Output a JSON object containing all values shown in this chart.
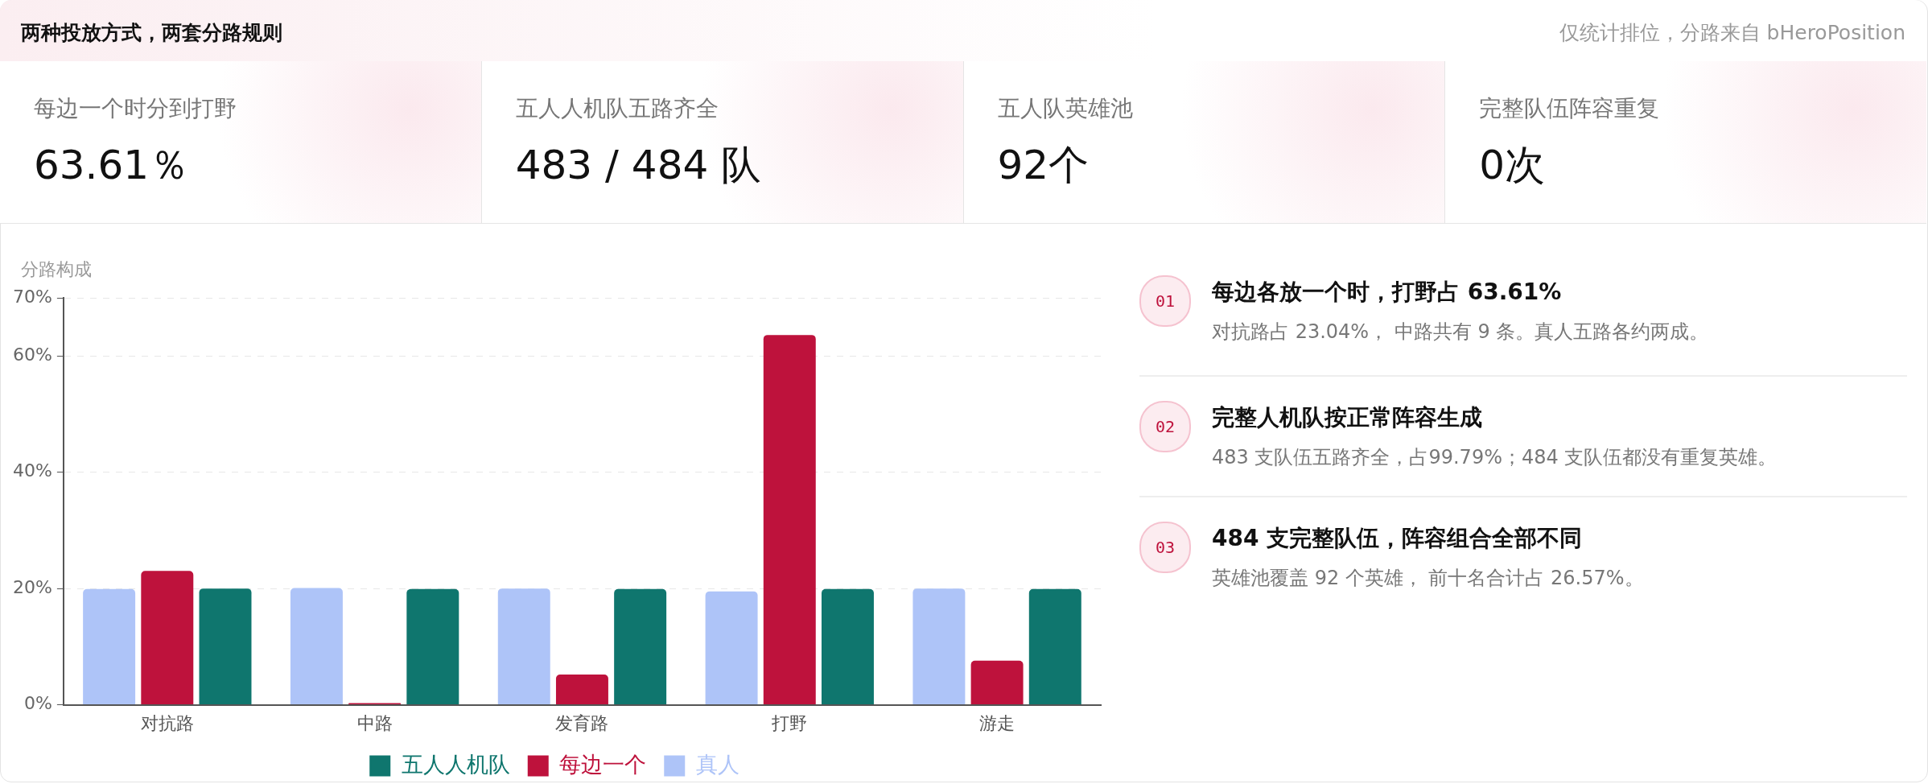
{
  "chart_data": [
    {
      "type": "other",
      "title": "两种投放方式，两套分路规则",
      "subtitle": "仅统计排位，分路来自 bHeroPosition",
      "annotations": [
        "每边一个时分到打野",
        "63.61％",
        "五人人机队五路齐全",
        "483 / 484 队",
        "五人队英雄池",
        "92个",
        "完整队伍阵容重复",
        "0次",
        "01",
        "每边各放一个时，打野占 63.61%",
        "对抗路占 23.04%， 中路共有 9 条。真人五路各约两成。",
        "02",
        "完整人机队按正常阵容生成",
        "483 支队伍五路齐全，占99.79%；484 支队伍都没有重复英雄。",
        "03",
        "484 支完整队伍，阵容组合全部不同",
        "英雄池覆盖 92 个英雄， 前十名合计占 26.57%。"
      ]
    },
    {
      "type": "bar",
      "title": "分路构成",
      "categories": [
        "对抗路",
        "中路",
        "发育路",
        "打野",
        "游走"
      ],
      "series": [
        {
          "name": "真人",
          "color": "#aec4f8",
          "values": [
            19.9,
            20.1,
            20.0,
            19.5,
            20.0
          ]
        },
        {
          "name": "每边一个",
          "color": "#be123c",
          "values": [
            23.04,
            0.3,
            5.2,
            63.61,
            7.6
          ]
        },
        {
          "name": "五人人机队",
          "color": "#0f766e",
          "values": [
            20.0,
            19.9,
            19.9,
            19.9,
            19.9
          ]
        }
      ],
      "ylim": [
        0,
        70
      ],
      "yticks": [
        {
          "value": 0,
          "label": "0%"
        },
        {
          "value": 20,
          "label": "20%"
        },
        {
          "value": 40,
          "label": "40%"
        },
        {
          "value": 60,
          "label": "60%"
        },
        {
          "value": 70,
          "label": "70%"
        }
      ],
      "grid": "y",
      "legend": "bottom"
    }
  ]
}
